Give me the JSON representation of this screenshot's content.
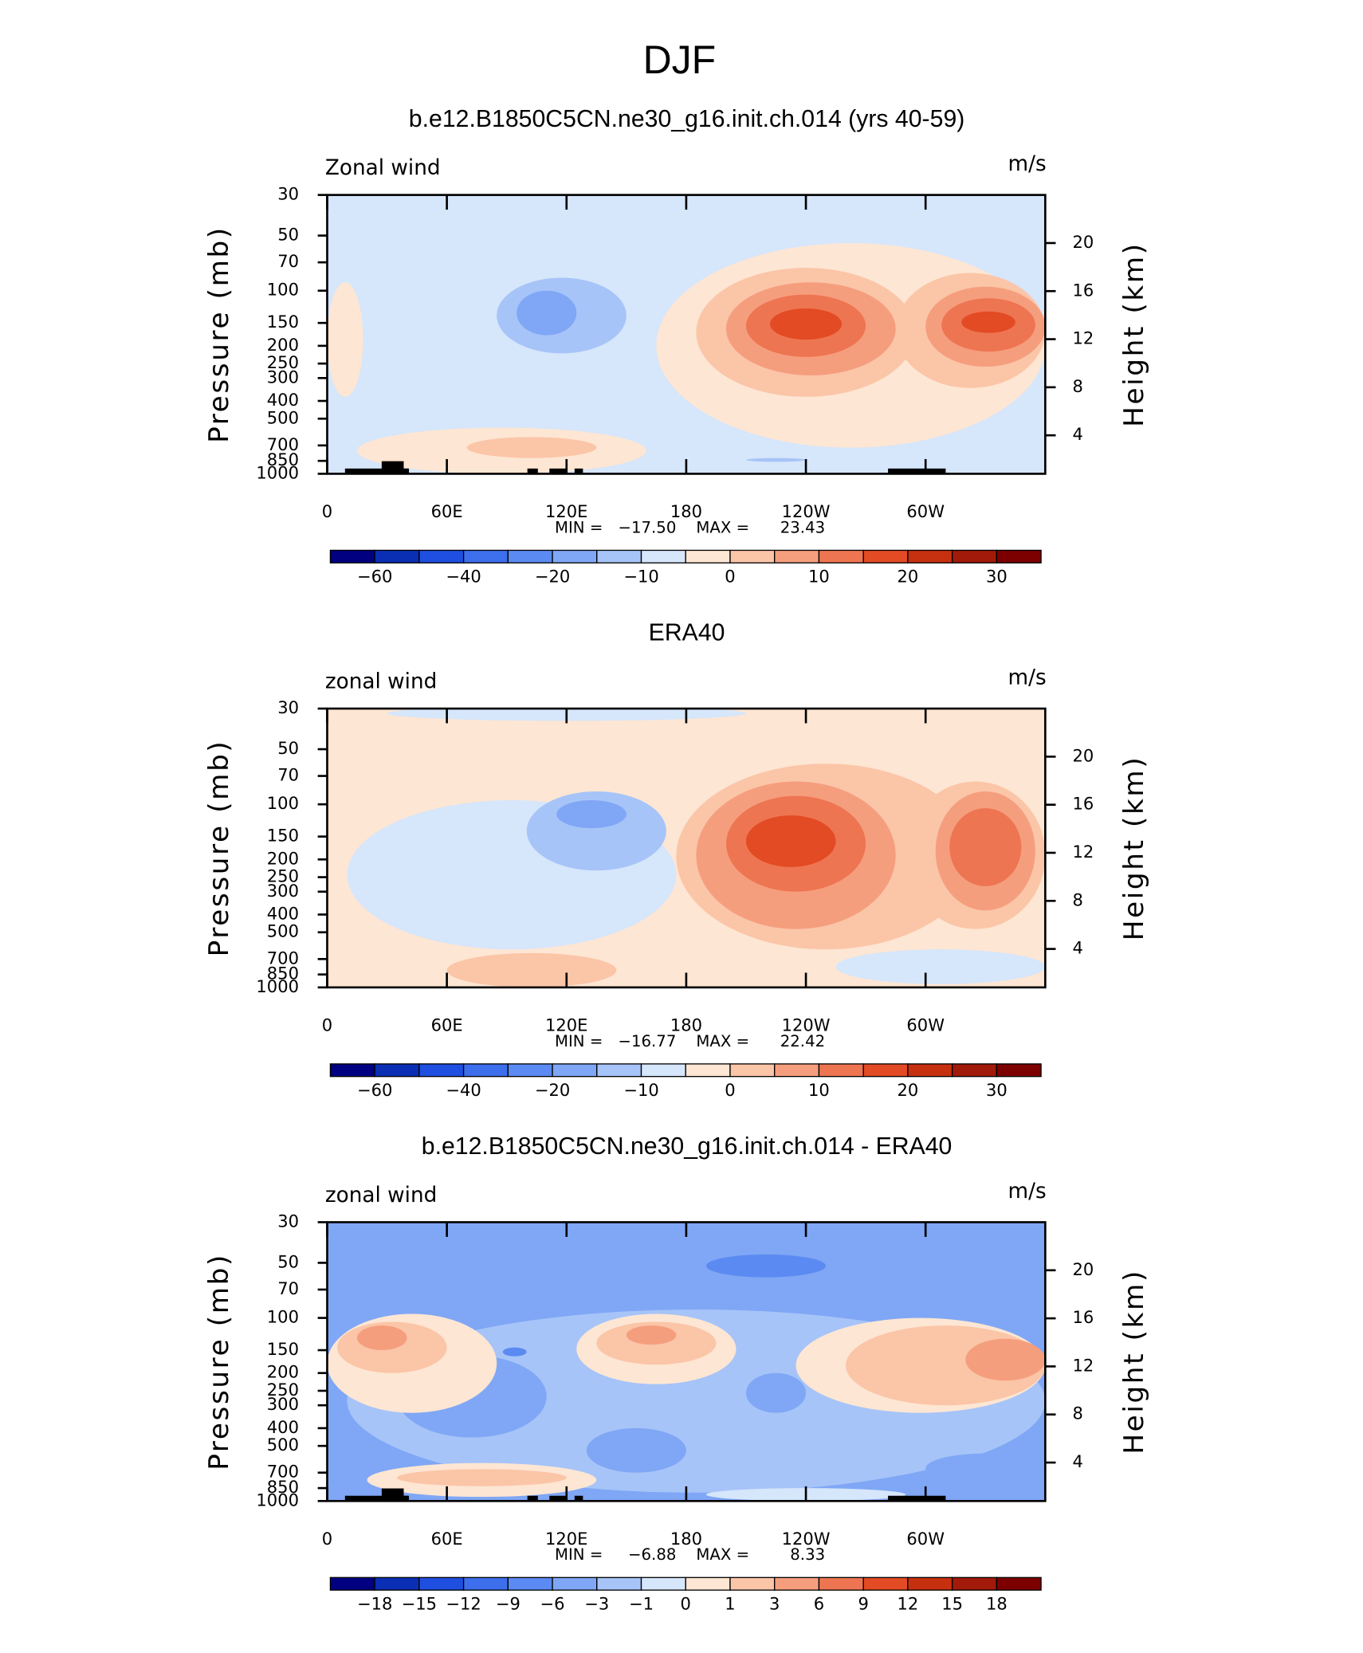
{
  "title": "DJF",
  "chart_data": [
    {
      "type": "contour",
      "title": "b.e12.B1850C5CN.ne30_g16.init.ch.014 (yrs 40-59)",
      "subtitle": "Zonal wind",
      "units": "m/s",
      "ylabel": "Pressure (mb)",
      "y2label": "Height (km)",
      "ylog": true,
      "xlim": [
        0,
        360
      ],
      "xticks": [
        0,
        {
          "value": 60,
          "label": "60E"
        },
        {
          "value": 120,
          "label": "120E"
        },
        180,
        {
          "value": 240,
          "label": "120W"
        },
        {
          "value": 300,
          "label": "60W"
        }
      ],
      "ylim": [
        30,
        1000
      ],
      "yticks": [
        30,
        50,
        70,
        100,
        150,
        200,
        250,
        300,
        400,
        500,
        700,
        850,
        1000
      ],
      "y2lim": [
        0.8,
        24
      ],
      "y2ticks": [
        4,
        8,
        12,
        16,
        20
      ],
      "min_label": "MIN =",
      "min": {
        "value": -17.5,
        "label": "−17.50"
      },
      "max_label": "MAX =",
      "max": {
        "value": 23.43,
        "label": "23.43"
      },
      "levels": [
        -60,
        -50,
        -40,
        -30,
        -20,
        -15,
        -10,
        -5,
        0,
        5,
        10,
        15,
        20,
        25,
        30
      ],
      "colorbar_ticks": [
        -60,
        -40,
        -20,
        -10,
        0,
        10,
        20,
        30
      ],
      "colors": [
        "#000080",
        "#0a2fb4",
        "#1f4fe0",
        "#3d6eec",
        "#5b8af2",
        "#7fa7f5",
        "#a7c4f8",
        "#d6e6fb",
        "#fde6d3",
        "#fbc5a8",
        "#f59e7e",
        "#ee7551",
        "#e24b24",
        "#c7300f",
        "#a11a0a",
        "#7d0000"
      ],
      "background": -10,
      "regions": [
        {
          "level": -5,
          "lon": [
            165,
            360
          ],
          "p": [
            55,
            720
          ]
        },
        {
          "level": -5,
          "lon": [
            0,
            18
          ],
          "p": [
            90,
            380
          ]
        },
        {
          "level": -5,
          "lon": [
            15,
            160
          ],
          "p": [
            560,
            1000
          ]
        },
        {
          "level": 0,
          "lon": [
            185,
            295
          ],
          "p": [
            75,
            380
          ]
        },
        {
          "level": 0,
          "lon": [
            285,
            360
          ],
          "p": [
            80,
            340
          ]
        },
        {
          "level": 0,
          "lon": [
            70,
            135
          ],
          "p": [
            630,
            820
          ]
        },
        {
          "level": 5,
          "lon": [
            200,
            285
          ],
          "p": [
            90,
            290
          ]
        },
        {
          "level": 5,
          "lon": [
            300,
            360
          ],
          "p": [
            95,
            260
          ]
        },
        {
          "level": 10,
          "lon": [
            210,
            270
          ],
          "p": [
            105,
            230
          ]
        },
        {
          "level": 10,
          "lon": [
            308,
            355
          ],
          "p": [
            110,
            215
          ]
        },
        {
          "level": 15,
          "lon": [
            222,
            258
          ],
          "p": [
            125,
            185
          ]
        },
        {
          "level": 15,
          "lon": [
            318,
            345
          ],
          "p": [
            130,
            170
          ]
        },
        {
          "level": -15,
          "lon": [
            85,
            150
          ],
          "p": [
            85,
            220
          ]
        },
        {
          "level": -20,
          "lon": [
            95,
            125
          ],
          "p": [
            100,
            175
          ]
        },
        {
          "level": -15,
          "lon": [
            210,
            240
          ],
          "p": [
            820,
            860
          ]
        }
      ]
    },
    {
      "type": "contour",
      "title": "ERA40",
      "subtitle": "zonal wind",
      "units": "m/s",
      "ylabel": "Pressure (mb)",
      "y2label": "Height (km)",
      "ylog": true,
      "xlim": [
        0,
        360
      ],
      "xticks": [
        0,
        {
          "value": 60,
          "label": "60E"
        },
        {
          "value": 120,
          "label": "120E"
        },
        180,
        {
          "value": 240,
          "label": "120W"
        },
        {
          "value": 300,
          "label": "60W"
        }
      ],
      "ylim": [
        30,
        1000
      ],
      "yticks": [
        30,
        50,
        70,
        100,
        150,
        200,
        250,
        300,
        400,
        500,
        700,
        850,
        1000
      ],
      "y2lim": [
        0.8,
        24
      ],
      "y2ticks": [
        4,
        8,
        12,
        16,
        20
      ],
      "min_label": "MIN =",
      "min": {
        "value": -16.77,
        "label": "−16.77"
      },
      "max_label": "MAX =",
      "max": {
        "value": 22.42,
        "label": "22.42"
      },
      "levels": [
        -60,
        -50,
        -40,
        -30,
        -20,
        -15,
        -10,
        -5,
        0,
        5,
        10,
        15,
        20,
        25,
        30
      ],
      "colorbar_ticks": [
        -60,
        -40,
        -20,
        -10,
        0,
        10,
        20,
        30
      ],
      "colors": [
        "#000080",
        "#0a2fb4",
        "#1f4fe0",
        "#3d6eec",
        "#5b8af2",
        "#7fa7f5",
        "#a7c4f8",
        "#d6e6fb",
        "#fde6d3",
        "#fbc5a8",
        "#f59e7e",
        "#ee7551",
        "#e24b24",
        "#c7300f",
        "#a11a0a",
        "#7d0000"
      ],
      "background": -5,
      "regions": [
        {
          "level": -10,
          "lon": [
            10,
            175
          ],
          "p": [
            95,
            620
          ]
        },
        {
          "level": -10,
          "lon": [
            30,
            210
          ],
          "p": [
            29,
            35
          ]
        },
        {
          "level": -10,
          "lon": [
            255,
            360
          ],
          "p": [
            620,
            960
          ]
        },
        {
          "level": -15,
          "lon": [
            100,
            170
          ],
          "p": [
            85,
            230
          ]
        },
        {
          "level": -20,
          "lon": [
            115,
            150
          ],
          "p": [
            95,
            135
          ]
        },
        {
          "level": 0,
          "lon": [
            175,
            325
          ],
          "p": [
            60,
            620
          ]
        },
        {
          "level": 0,
          "lon": [
            290,
            360
          ],
          "p": [
            75,
            480
          ]
        },
        {
          "level": 0,
          "lon": [
            60,
            145
          ],
          "p": [
            650,
            1000
          ]
        },
        {
          "level": 5,
          "lon": [
            185,
            285
          ],
          "p": [
            75,
            480
          ]
        },
        {
          "level": 5,
          "lon": [
            305,
            355
          ],
          "p": [
            85,
            380
          ]
        },
        {
          "level": 10,
          "lon": [
            200,
            270
          ],
          "p": [
            90,
            300
          ]
        },
        {
          "level": 10,
          "lon": [
            312,
            348
          ],
          "p": [
            105,
            280
          ]
        },
        {
          "level": 15,
          "lon": [
            210,
            255
          ],
          "p": [
            115,
            220
          ]
        }
      ]
    },
    {
      "type": "contour",
      "title": "b.e12.B1850C5CN.ne30_g16.init.ch.014 - ERA40",
      "subtitle": "zonal wind",
      "units": "m/s",
      "ylabel": "Pressure (mb)",
      "y2label": "Height (km)",
      "ylog": true,
      "xlim": [
        0,
        360
      ],
      "xticks": [
        0,
        {
          "value": 60,
          "label": "60E"
        },
        {
          "value": 120,
          "label": "120E"
        },
        180,
        {
          "value": 240,
          "label": "120W"
        },
        {
          "value": 300,
          "label": "60W"
        }
      ],
      "ylim": [
        30,
        1000
      ],
      "yticks": [
        30,
        50,
        70,
        100,
        150,
        200,
        250,
        300,
        400,
        500,
        700,
        850,
        1000
      ],
      "y2lim": [
        0.8,
        24
      ],
      "y2ticks": [
        4,
        8,
        12,
        16,
        20
      ],
      "min_label": "MIN =",
      "min": {
        "value": -6.88,
        "label": "−6.88"
      },
      "max_label": "MAX =",
      "max": {
        "value": 8.33,
        "label": "8.33"
      },
      "levels": [
        -18,
        -15,
        -12,
        -9,
        -6,
        -3,
        -1,
        0,
        1,
        3,
        6,
        9,
        12,
        15,
        18
      ],
      "colorbar_ticks": [
        -18,
        -15,
        -12,
        -9,
        -6,
        -3,
        -1,
        0,
        1,
        3,
        6,
        9,
        12,
        15,
        18
      ],
      "colors": [
        "#000080",
        "#0a2fb4",
        "#1f4fe0",
        "#3d6eec",
        "#5b8af2",
        "#7fa7f5",
        "#a7c4f8",
        "#d6e6fb",
        "#fde6d3",
        "#fbc5a8",
        "#f59e7e",
        "#ee7551",
        "#e24b24",
        "#c7300f",
        "#a11a0a",
        "#7d0000"
      ],
      "background": -6,
      "regions": [
        {
          "level": -9,
          "lon": [
            190,
            250
          ],
          "p": [
            45,
            60
          ]
        },
        {
          "level": -3,
          "lon": [
            10,
            360
          ],
          "p": [
            90,
            900
          ]
        },
        {
          "level": -6,
          "lon": [
            35,
            110
          ],
          "p": [
            160,
            450
          ]
        },
        {
          "level": -6,
          "lon": [
            210,
            240
          ],
          "p": [
            200,
            330
          ]
        },
        {
          "level": -6,
          "lon": [
            130,
            180
          ],
          "p": [
            400,
            700
          ]
        },
        {
          "level": -6,
          "lon": [
            300,
            360
          ],
          "p": [
            550,
            800
          ]
        },
        {
          "level": -6,
          "lon": [
            0,
            30
          ],
          "p": [
            500,
            900
          ]
        },
        {
          "level": -9,
          "lon": [
            88,
            100
          ],
          "p": [
            145,
            162
          ]
        },
        {
          "level": 0,
          "lon": [
            0,
            85
          ],
          "p": [
            95,
            330
          ]
        },
        {
          "level": 0,
          "lon": [
            125,
            205
          ],
          "p": [
            95,
            230
          ]
        },
        {
          "level": 0,
          "lon": [
            235,
            360
          ],
          "p": [
            100,
            330
          ]
        },
        {
          "level": 0,
          "lon": [
            20,
            135
          ],
          "p": [
            620,
            950
          ]
        },
        {
          "level": 1,
          "lon": [
            5,
            60
          ],
          "p": [
            105,
            200
          ]
        },
        {
          "level": 1,
          "lon": [
            135,
            195
          ],
          "p": [
            105,
            180
          ]
        },
        {
          "level": 1,
          "lon": [
            260,
            360
          ],
          "p": [
            110,
            300
          ]
        },
        {
          "level": 1,
          "lon": [
            35,
            120
          ],
          "p": [
            670,
            830
          ]
        },
        {
          "level": 3,
          "lon": [
            150,
            175
          ],
          "p": [
            110,
            140
          ]
        },
        {
          "level": 3,
          "lon": [
            320,
            360
          ],
          "p": [
            130,
            220
          ]
        },
        {
          "level": 3,
          "lon": [
            15,
            40
          ],
          "p": [
            110,
            150
          ]
        },
        {
          "level": -1,
          "lon": [
            190,
            290
          ],
          "p": [
            850,
            1000
          ]
        }
      ]
    }
  ]
}
